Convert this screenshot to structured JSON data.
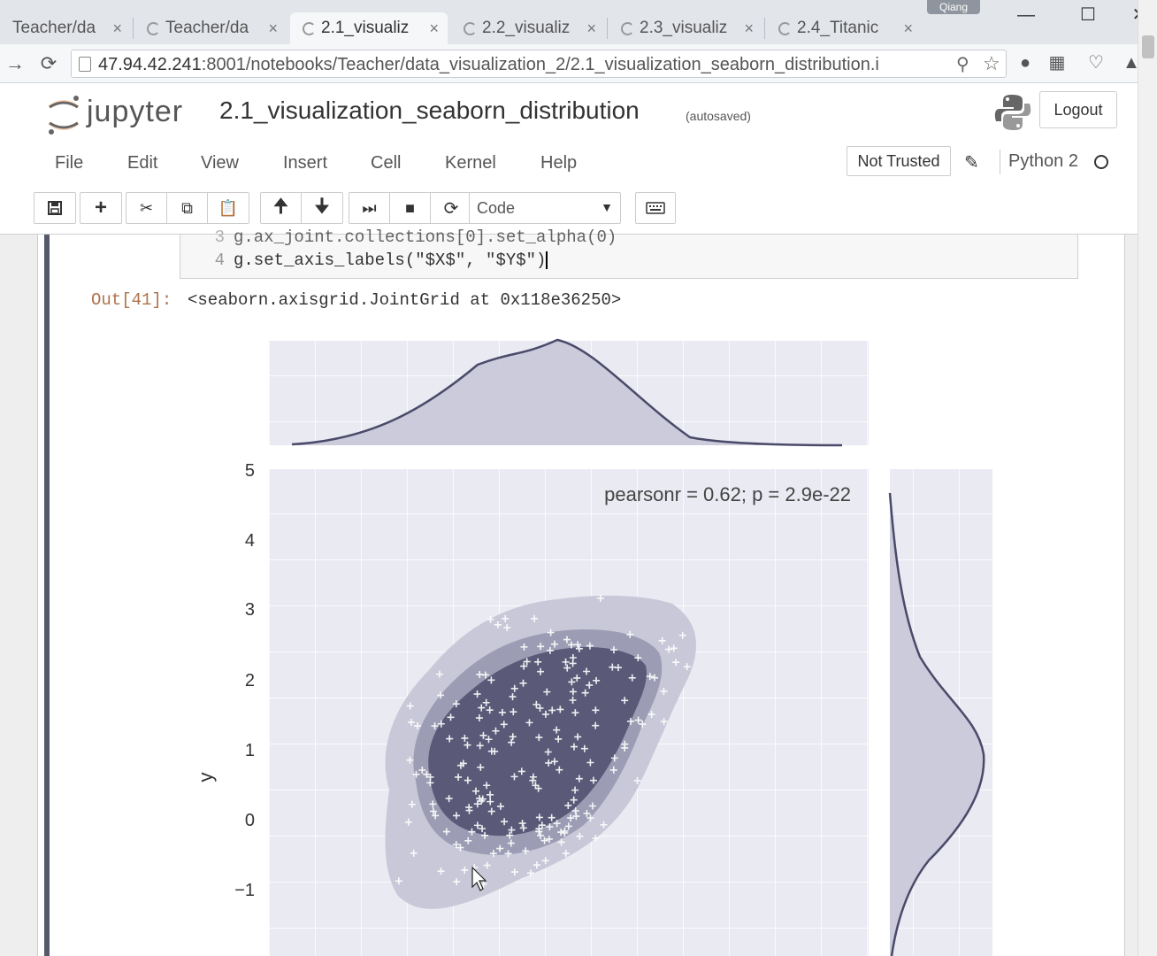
{
  "browser": {
    "profile_name": "Qiang",
    "tabs": [
      {
        "label": "Teacher/da",
        "close": "×"
      },
      {
        "label": "Teacher/da",
        "close": "×"
      },
      {
        "label": "2.1_visualiz",
        "close": "×"
      },
      {
        "label": "2.2_visualiz",
        "close": "×"
      },
      {
        "label": "2.3_visualiz",
        "close": "×"
      },
      {
        "label": "2.4_Titanic",
        "close": "×"
      }
    ],
    "url_host": "47.94.42.241",
    "url_rest": ":8001/notebooks/Teacher/data_visualization_2/2.1_visualization_seaborn_distribution.i"
  },
  "jupyter": {
    "logo_text": "jupyter",
    "notebook_title": "2.1_visualization_seaborn_distribution",
    "save_status": "(autosaved)",
    "logout_label": "Logout",
    "menu": [
      "File",
      "Edit",
      "View",
      "Insert",
      "Cell",
      "Kernel",
      "Help"
    ],
    "trust_label": "Not Trusted",
    "kernel_name": "Python 2",
    "cell_type": "Code"
  },
  "cell": {
    "code_lines": [
      {
        "num": "3",
        "text": "g.ax_joint.collections[0].set_alpha(0)"
      },
      {
        "num": "4",
        "text": "g.set_axis_labels(\"$X$\", \"$Y$\")"
      }
    ],
    "out_prompt": "Out[41]:",
    "out_text": "<seaborn.axisgrid.JointGrid at 0x118e36250>"
  },
  "chart_data": {
    "type": "scatter",
    "subtype": "jointplot-kde",
    "annotation": "pearsonr = 0.62; p = 2.9e-22",
    "ylabel": "y",
    "yticks": [
      "5",
      "4",
      "3",
      "2",
      "1",
      "0",
      "−1"
    ],
    "ylim": [
      -1.3,
      5
    ],
    "grid": true,
    "marker": "+",
    "colors": {
      "background": "#eaeaf2",
      "kde_fill": "#5a5a78",
      "kde_mid": "#9c9cb4",
      "kde_outer": "#c8c8d8",
      "marker": "#ffffff",
      "line": "#4a4a6a"
    }
  }
}
